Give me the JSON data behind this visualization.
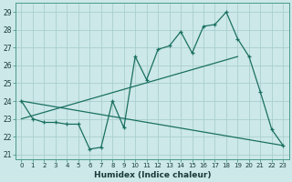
{
  "xlabel": "Humidex (Indice chaleur)",
  "bg_color": "#cce8e8",
  "line_color": "#1a7060",
  "grid_color": "#aacece",
  "xlim": [
    -0.5,
    23.5
  ],
  "ylim": [
    20.75,
    29.5
  ],
  "xticks": [
    0,
    1,
    2,
    3,
    4,
    5,
    6,
    7,
    8,
    9,
    10,
    11,
    12,
    13,
    14,
    15,
    16,
    17,
    18,
    19,
    20,
    21,
    22,
    23
  ],
  "yticks": [
    21,
    22,
    23,
    24,
    25,
    26,
    27,
    28,
    29
  ],
  "line1_x": [
    0,
    1,
    2,
    3,
    4,
    5,
    6,
    7,
    8,
    9,
    10,
    11,
    12,
    13,
    14,
    15,
    16,
    17,
    18,
    19,
    20,
    21,
    22,
    23
  ],
  "line1_y": [
    24.0,
    23.0,
    22.8,
    22.8,
    22.7,
    22.7,
    21.3,
    21.4,
    24.0,
    22.5,
    26.5,
    25.2,
    26.9,
    27.1,
    27.9,
    26.7,
    28.2,
    28.3,
    29.0,
    27.5,
    26.5,
    24.5,
    22.4,
    21.5
  ],
  "line2_x": [
    0,
    19
  ],
  "line2_y": [
    23.0,
    26.5
  ],
  "line3_x": [
    0,
    23
  ],
  "line3_y": [
    24.0,
    21.5
  ],
  "figsize": [
    3.2,
    2.0
  ],
  "dpi": 100
}
